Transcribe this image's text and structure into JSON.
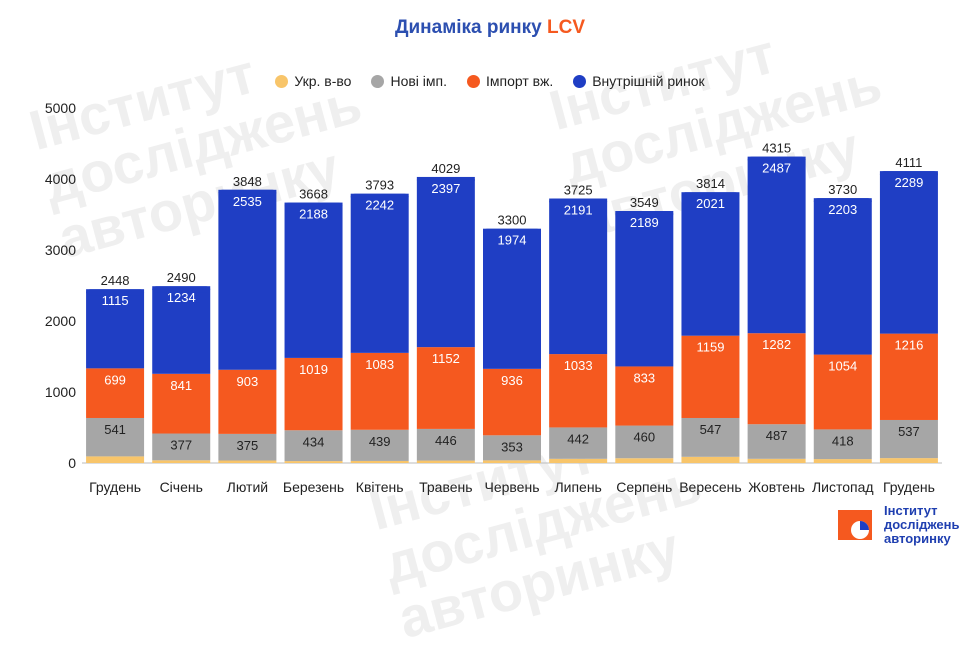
{
  "title": {
    "main": "Динаміка ринку ",
    "accent": "LCV"
  },
  "watermark": {
    "line1": "Інститут",
    "line2": "досліджень",
    "line3": "авторинку"
  },
  "logo": {
    "line1": "Інститут",
    "line2": "досліджень",
    "line3": "авторинку"
  },
  "colors": {
    "ukr": "#f8c56a",
    "new": "#a6a6a6",
    "import": "#f5591f",
    "domestic": "#1f3ec4"
  },
  "chart_data": {
    "type": "bar",
    "stacked": true,
    "title": "Динаміка ринку LCV",
    "categories": [
      "Грудень",
      "Січень",
      "Лютий",
      "Березень",
      "Квітень",
      "Травень",
      "Червень",
      "Липень",
      "Серпень",
      "Вересень",
      "Жовтень",
      "Листопад",
      "Грудень"
    ],
    "series": [
      {
        "name": "Укр. в-во",
        "values": [
          93,
          38,
          35,
          27,
          29,
          34,
          37,
          59,
          67,
          87,
          59,
          55,
          69
        ]
      },
      {
        "name": "Нові імп.",
        "values": [
          541,
          377,
          375,
          434,
          439,
          446,
          353,
          442,
          460,
          547,
          487,
          418,
          537
        ]
      },
      {
        "name": "Імпорт вж.",
        "values": [
          699,
          841,
          903,
          1019,
          1083,
          1152,
          936,
          1033,
          833,
          1159,
          1282,
          1054,
          1216
        ]
      },
      {
        "name": "Внутрішній ринок",
        "values": [
          1115,
          1234,
          2535,
          2188,
          2242,
          2397,
          1974,
          2191,
          2189,
          2021,
          2487,
          2203,
          2289
        ]
      }
    ],
    "totals": [
      2448,
      2490,
      3848,
      3668,
      3793,
      4029,
      3300,
      3725,
      3549,
      3814,
      4315,
      3730,
      4111
    ],
    "ylim": [
      0,
      5000
    ],
    "yticks": [
      0,
      1000,
      2000,
      3000,
      4000,
      5000
    ],
    "xlabel": "",
    "ylabel": "",
    "legend_position": "top-center"
  }
}
